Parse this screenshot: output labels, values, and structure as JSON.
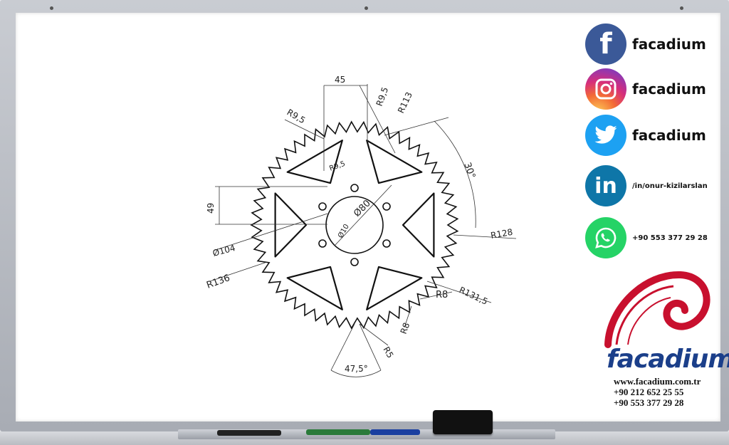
{
  "drawing": {
    "dims": {
      "d45": "45",
      "r95_top": "R9,5",
      "r113": "R113",
      "r95_left": "R9,5",
      "r95_inner": "R9,5",
      "a30": "30°",
      "d49": "49",
      "d80": "Ø80",
      "d10": "Ø10",
      "d104": "Ø104",
      "r128": "R128",
      "r136": "R136",
      "r8a": "R8",
      "r1315": "R131,5",
      "r8b": "R8",
      "r5": "R5",
      "a475": "47,5°"
    }
  },
  "social": {
    "facebook": "facadium",
    "instagram": "facadium",
    "twitter": "facadium",
    "linkedin": "/in/onur-kizilarslan",
    "whatsapp": "+90 553 377 29 28"
  },
  "brand": {
    "name": "facadium",
    "website": "www.facadium.com.tr",
    "phone1": "+90 212 652 25 55",
    "phone2": "+90 553 377 29 28"
  },
  "colors": {
    "facebook": "#3b5998",
    "twitter": "#1da1f2",
    "linkedin": "#0e76a8",
    "whatsapp": "#25d366",
    "brand": "#1b3f8a",
    "swirl": "#c8102e"
  }
}
